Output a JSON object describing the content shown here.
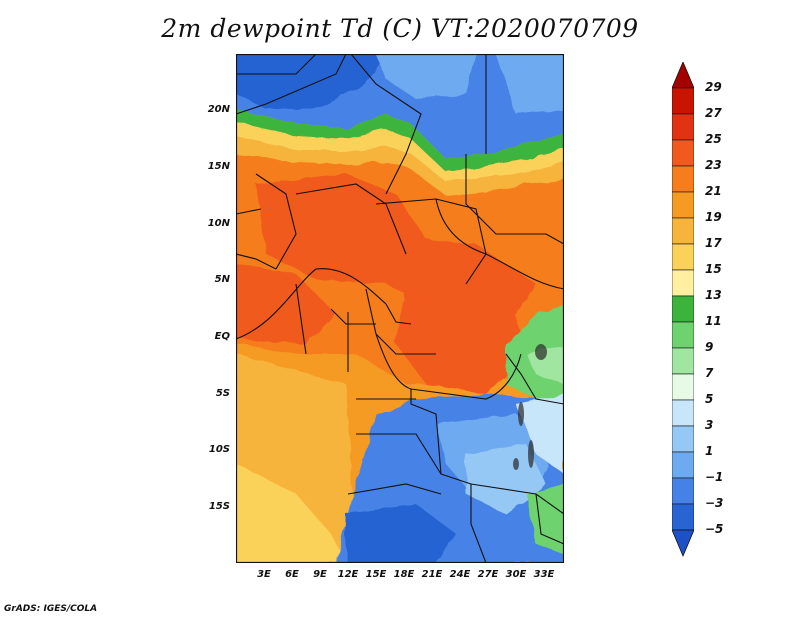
{
  "title": "2m dewpoint Td (C) VT:2020070709",
  "credit": "GrADS: IGES/COLA",
  "map": {
    "latitude_labels": [
      "20N",
      "15N",
      "10N",
      "5N",
      "EQ",
      "5S",
      "10S",
      "15S"
    ],
    "longitude_labels": [
      "3E",
      "6E",
      "9E",
      "12E",
      "15E",
      "18E",
      "21E",
      "24E",
      "27E",
      "30E",
      "33E"
    ]
  },
  "colorbar": {
    "levels": [
      "29",
      "27",
      "25",
      "23",
      "21",
      "19",
      "17",
      "15",
      "13",
      "11",
      "9",
      "7",
      "5",
      "3",
      "1",
      "−1",
      "−3",
      "−5"
    ],
    "colors": [
      "#a50000",
      "#c81400",
      "#e13214",
      "#f05a1e",
      "#f57d1e",
      "#f59b23",
      "#f7b43c",
      "#fad25a",
      "#fff0a0",
      "#3cb43c",
      "#6ed26e",
      "#a0e6a0",
      "#e6fae6",
      "#c8e6fa",
      "#96c8f5",
      "#6eaaf0",
      "#4682e6",
      "#2864d2",
      "#1e50c8"
    ]
  }
}
